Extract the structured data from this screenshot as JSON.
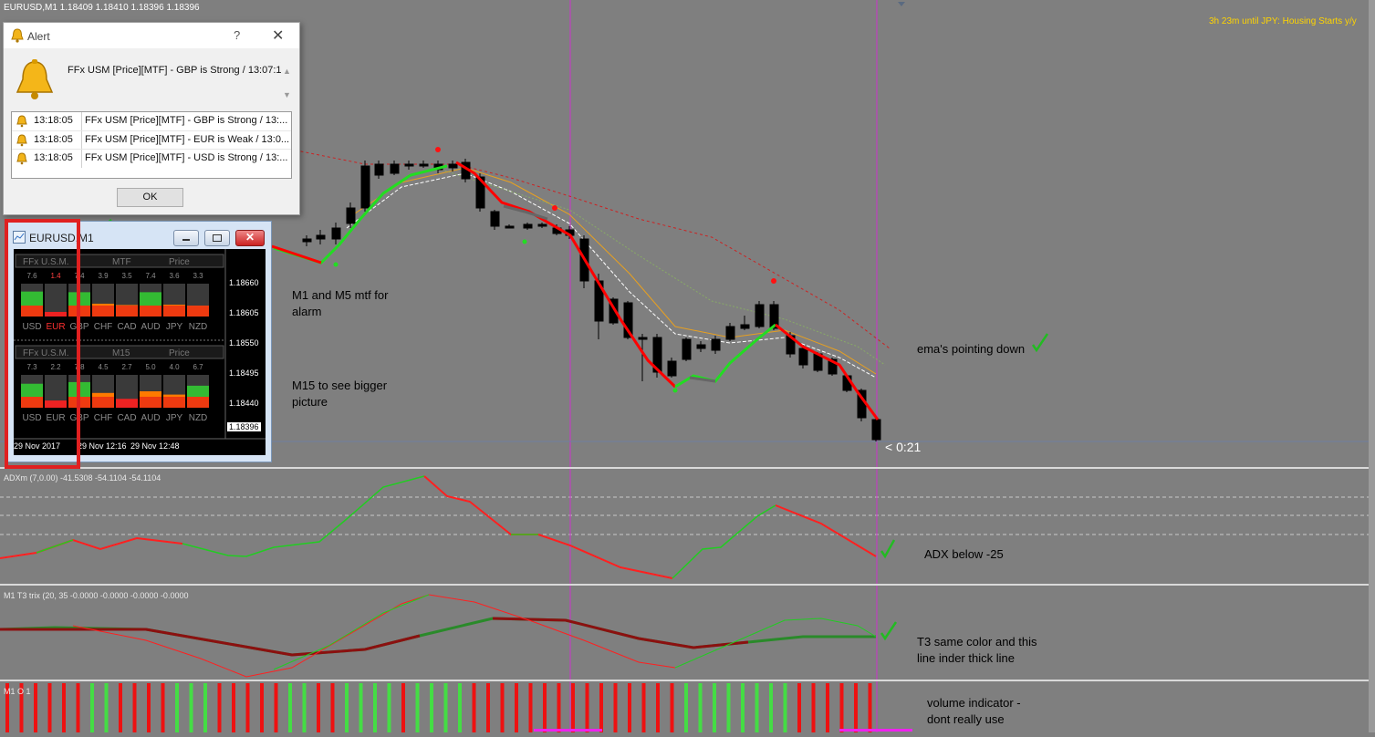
{
  "chart": {
    "symbol_header": "EURUSD,M1  1.18409 1.18410 1.18396 1.18396",
    "news_countdown": "3h 23m until JPY: Housing Starts y/y",
    "bar_timer": "< 0:21",
    "current_price": "1.18396",
    "colors": {
      "background": "#7f7f7f",
      "bull": "#ffffff",
      "bear": "#000000",
      "up_line": "#22dd22",
      "down_line": "#ff0000",
      "vline": "#cc33cc",
      "news": "#ffd700"
    }
  },
  "annotations": {
    "mtf_alarm": [
      "M1 and M5 mtf for",
      "alarm"
    ],
    "m15": [
      "M15 to see bigger",
      "picture"
    ],
    "ema": "ema's pointing down",
    "adx": "ADX below -25",
    "t3": [
      "T3 same color and this",
      "line inder thick line"
    ],
    "volume": [
      "volume indicator -",
      "dont really use"
    ]
  },
  "indicators": {
    "adx_label": "ADXm (7,0.00) -41.5308 -54.1104 -54.1104",
    "t3_label": "M1 T3 trix (20, 35 -0.0000 -0.0000 -0.0000 -0.0000",
    "volume_label": "M1 O 1"
  },
  "alert_dialog": {
    "title": "Alert",
    "help": "?",
    "close": "✕",
    "message": "FFx USM [Price][MTF] - GBP is Strong / 13:07:1",
    "rows": [
      {
        "time": "13:18:05",
        "text": "FFx USM [Price][MTF] - GBP is Strong / 13:..."
      },
      {
        "time": "13:18:05",
        "text": "FFx USM [Price][MTF] - EUR is Weak / 13:0..."
      },
      {
        "time": "13:18:05",
        "text": "FFx USM [Price][MTF] - USD is Strong / 13:..."
      }
    ],
    "ok_label": "OK"
  },
  "mini_chart": {
    "title": "EURUSD,M1",
    "panels": [
      {
        "h1": "FFx U.S.M.",
        "h2": "MTF",
        "h3": "Price",
        "values": [
          "7.6",
          "1.4",
          "7.4",
          "3.9",
          "3.5",
          "7.4",
          "3.6",
          "3.3"
        ],
        "levels": [
          0.76,
          0.14,
          0.74,
          0.39,
          0.35,
          0.74,
          0.36,
          0.33
        ]
      },
      {
        "h1": "FFx U.S.M.",
        "h2": "M15",
        "h3": "Price",
        "values": [
          "7.3",
          "2.2",
          "7.8",
          "4.5",
          "2.7",
          "5.0",
          "4.0",
          "6.7"
        ],
        "levels": [
          0.73,
          0.22,
          0.78,
          0.45,
          0.27,
          0.5,
          0.4,
          0.67
        ]
      }
    ],
    "currencies": [
      "USD",
      "EUR",
      "GBP",
      "CHF",
      "CAD",
      "AUD",
      "JPY",
      "NZD"
    ],
    "prices": [
      "1.18660",
      "1.18605",
      "1.18550",
      "1.18495",
      "1.18440",
      "1.18396"
    ],
    "dates": [
      "29 Nov 2017",
      "29 Nov 12:16",
      "29 Nov 12:48"
    ]
  }
}
